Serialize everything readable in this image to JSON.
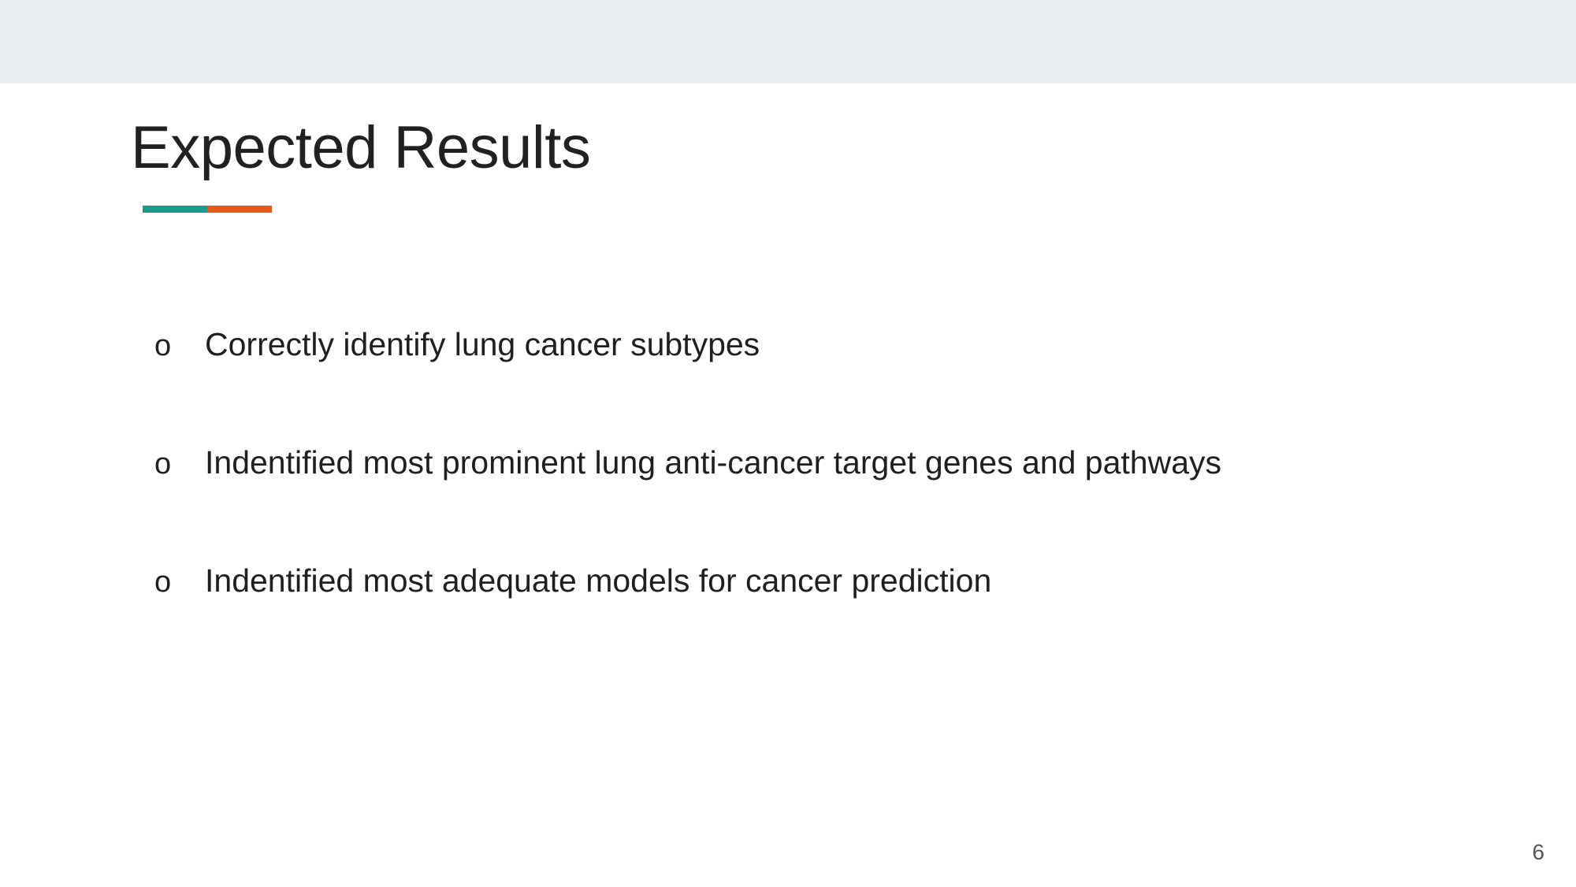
{
  "slide": {
    "title": "Expected Results",
    "accent_colors": [
      "#1a9a8a",
      "#e85a1a"
    ],
    "bullet_marker": "o",
    "bullets": [
      "Correctly identify lung cancer subtypes",
      "Indentified most prominent lung anti-cancer target genes and pathways",
      "Indentified most adequate models for cancer prediction"
    ],
    "page_number": "6"
  }
}
